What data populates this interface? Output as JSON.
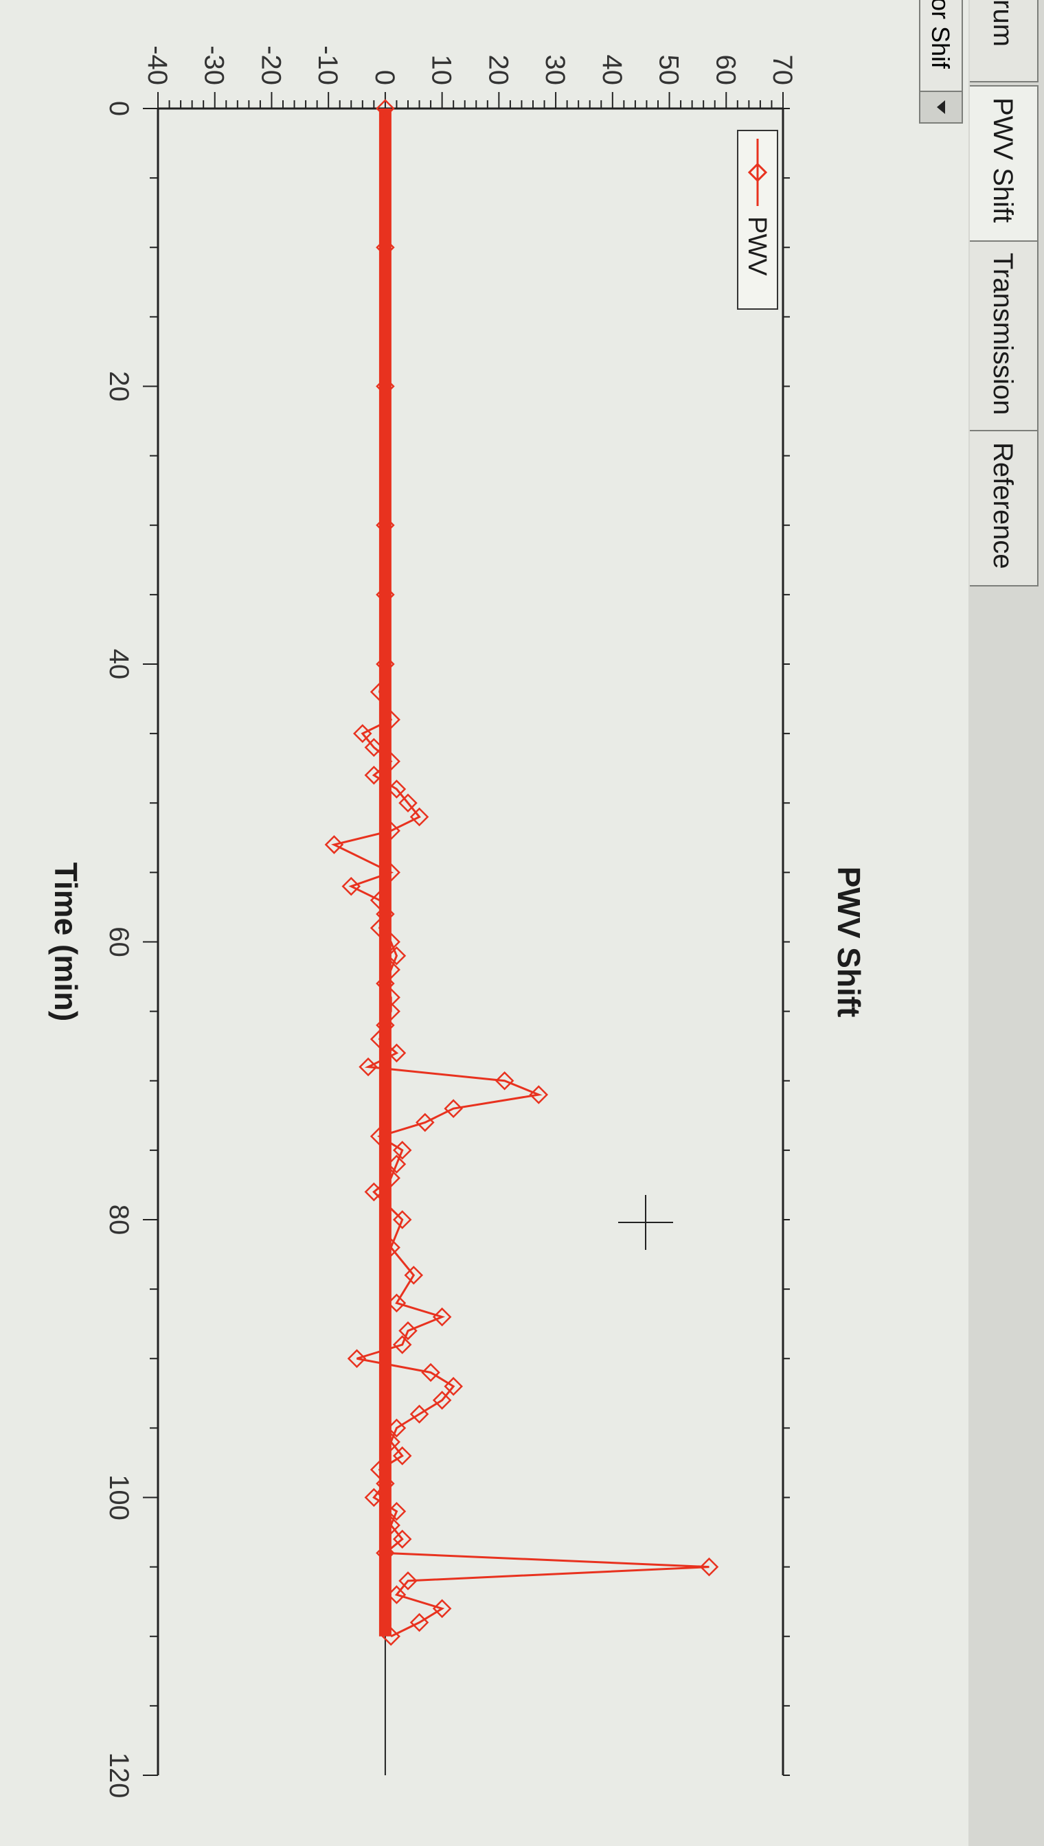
{
  "tabs": [
    "trum",
    "PWV Shift",
    "Transmission",
    "Reference"
  ],
  "dropdown": {
    "value": "or Shif"
  },
  "chart_data": {
    "type": "line",
    "title": "PWV Shift",
    "xlabel": "Time (min)",
    "ylabel": "",
    "xlim": [
      0,
      120
    ],
    "ylim": [
      -40,
      70
    ],
    "xticks": [
      0,
      20,
      40,
      60,
      80,
      100,
      120
    ],
    "yticks": [
      -40,
      -30,
      -20,
      -10,
      0,
      10,
      20,
      30,
      40,
      50,
      60,
      70
    ],
    "legend": {
      "position": "top-left",
      "entries": [
        "PWV"
      ]
    },
    "series": [
      {
        "name": "PWV",
        "color": "#e8321f",
        "x": [
          0,
          10,
          20,
          30,
          35,
          40,
          42,
          44,
          45,
          46,
          47,
          48,
          49,
          50,
          51,
          52,
          53,
          55,
          56,
          57,
          58,
          59,
          60,
          61,
          62,
          63,
          64,
          65,
          66,
          67,
          68,
          69,
          70,
          71,
          72,
          73,
          74,
          75,
          76,
          77,
          78,
          80,
          82,
          84,
          86,
          87,
          88,
          89,
          90,
          91,
          92,
          93,
          94,
          95,
          96,
          97,
          98,
          99,
          100,
          101,
          102,
          103,
          104,
          105,
          106,
          107,
          108,
          109,
          110
        ],
        "y": [
          0,
          0,
          0,
          0,
          0,
          0,
          -1,
          1,
          -4,
          -2,
          1,
          -2,
          2,
          4,
          6,
          1,
          -9,
          1,
          -6,
          -1,
          0,
          -1,
          1,
          2,
          1,
          0,
          1,
          1,
          0,
          -1,
          2,
          -3,
          21,
          27,
          12,
          7,
          -1,
          3,
          2,
          1,
          -2,
          3,
          1,
          5,
          2,
          10,
          4,
          3,
          -5,
          8,
          12,
          10,
          6,
          2,
          1,
          3,
          -1,
          0,
          -2,
          2,
          1,
          3,
          0,
          57,
          4,
          2,
          10,
          6,
          1
        ]
      }
    ]
  }
}
